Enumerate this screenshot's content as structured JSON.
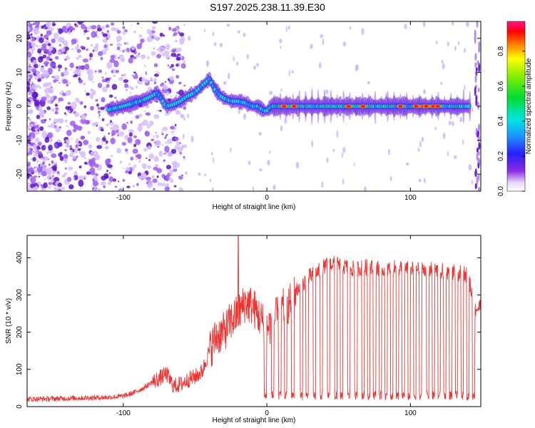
{
  "title": "S197.2025.238.11.39.E30",
  "chart_data": [
    {
      "type": "heatmap",
      "name": "spectrogram",
      "xlabel": "Height of straight line (km)",
      "ylabel": "Frequency (Hz)",
      "xlim": [
        -167,
        149
      ],
      "ylim": [
        -25,
        25
      ],
      "xticks": [
        -100,
        0,
        100
      ],
      "xtick_labels": [
        "-100",
        "0",
        "100"
      ],
      "yticks": [
        -20,
        -10,
        0,
        10,
        20
      ],
      "ytick_labels": [
        "-20",
        "-10",
        "0",
        "10",
        "20"
      ],
      "colorbar": {
        "label": "Normalized spectral amplitude",
        "range": [
          0,
          0.97
        ],
        "ticks": [
          0.0,
          0.2,
          0.4,
          0.6,
          0.8
        ],
        "tick_labels": [
          "0.0",
          "0.2",
          "0.4",
          "0.6",
          "0.8"
        ]
      },
      "ridge": {
        "x": [
          -110,
          -100,
          -92,
          -85,
          -80,
          -76,
          -70,
          -65,
          -60,
          -55,
          -50,
          -45,
          -40,
          -36,
          -32,
          -28,
          -24,
          -20,
          -15,
          -10,
          -6,
          -3,
          0,
          3,
          6,
          10,
          20,
          40,
          60,
          80,
          100,
          120,
          142
        ],
        "y": [
          -1,
          0,
          1,
          2,
          3,
          4,
          0,
          0.5,
          1.5,
          3,
          4,
          6,
          8,
          5,
          3,
          2,
          1.5,
          1.5,
          1,
          0,
          0,
          -1,
          -1.5,
          0,
          0,
          0,
          0,
          0,
          0,
          0,
          0,
          0,
          0
        ]
      },
      "hot_spots_x": [
        12,
        19,
        57,
        67,
        93,
        104,
        109,
        111,
        116,
        119
      ]
    },
    {
      "type": "line",
      "name": "snr",
      "xlabel": "Height of straight line (km)",
      "ylabel": "SNR (10 * v/v)",
      "xlim": [
        -167,
        149
      ],
      "ylim": [
        0,
        460
      ],
      "xticks": [
        -100,
        0,
        100
      ],
      "xtick_labels": [
        "-100",
        "0",
        "100"
      ],
      "yticks": [
        0,
        100,
        200,
        300,
        400
      ],
      "ytick_labels": [
        "0",
        "100",
        "200",
        "300",
        "400"
      ],
      "series": [
        {
          "name": "SNR",
          "color": "#ee3333",
          "x": [
            -167,
            -140,
            -120,
            -110,
            -100,
            -95,
            -90,
            -85,
            -80,
            -75,
            -70,
            -65,
            -60,
            -55,
            -50,
            -45,
            -40,
            -35,
            -30,
            -25,
            -20,
            -15,
            -10,
            -5,
            0,
            5,
            10,
            15,
            18,
            20,
            25,
            30,
            35,
            40,
            45,
            50,
            60,
            70,
            80,
            90,
            100,
            110,
            120,
            130,
            140,
            143,
            145,
            149
          ],
          "y": [
            20,
            22,
            24,
            25,
            28,
            34,
            42,
            52,
            66,
            75,
            88,
            55,
            60,
            72,
            80,
            95,
            150,
            190,
            200,
            230,
            250,
            280,
            270,
            240,
            210,
            230,
            260,
            275,
            290,
            310,
            330,
            350,
            360,
            375,
            385,
            380,
            370,
            375,
            368,
            372,
            368,
            370,
            365,
            360,
            355,
            300,
            260,
            270
          ]
        }
      ],
      "spike": {
        "x": -20,
        "y": 460
      },
      "dropouts_x": [
        -1,
        4,
        9,
        13,
        18,
        24,
        28,
        33,
        38,
        43,
        48,
        52,
        57,
        62,
        67,
        71,
        75,
        79,
        83,
        87,
        91,
        95,
        99,
        103,
        107,
        112,
        116,
        120,
        124,
        128,
        132,
        136,
        140,
        144
      ],
      "dropout_level": 30
    }
  ]
}
